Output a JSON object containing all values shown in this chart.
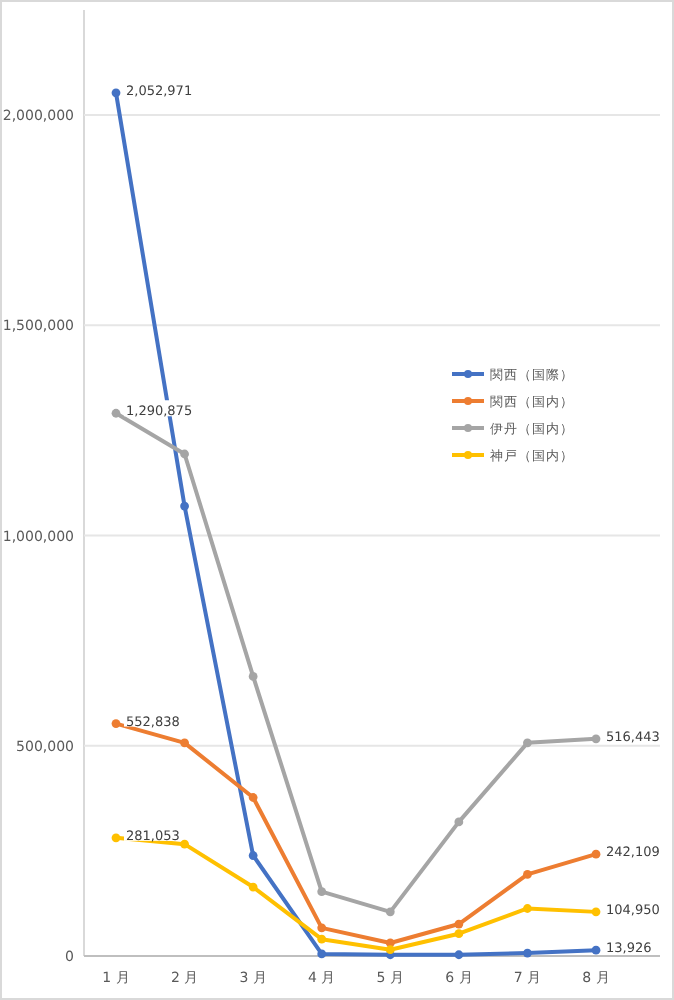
{
  "chart_data": {
    "type": "line",
    "categories": [
      "1 月",
      "2 月",
      "3 月",
      "4 月",
      "5 月",
      "6 月",
      "7 月",
      "8 月"
    ],
    "ylim": [
      0,
      2250000
    ],
    "yticks": [
      {
        "value": 0,
        "label": "0"
      },
      {
        "value": 500000,
        "label": "500,000"
      },
      {
        "value": 1000000,
        "label": "1,000,000"
      },
      {
        "value": 1500000,
        "label": "1,500,000"
      },
      {
        "value": 2000000,
        "label": "2,000,000"
      }
    ],
    "grid": "y",
    "legend": "right",
    "marker": "circle",
    "line_style": "solid",
    "series": [
      {
        "name": "関西（国際）",
        "color": "#4472c4",
        "values": [
          2052971,
          1070000,
          239000,
          5000,
          3000,
          3000,
          7000,
          13926
        ],
        "value_labels": [
          "2,052,971",
          null,
          null,
          null,
          null,
          null,
          null,
          "13,926"
        ]
      },
      {
        "name": "関西（国内）",
        "color": "#ed7d31",
        "values": [
          552838,
          507000,
          377000,
          67000,
          31000,
          76000,
          194000,
          242109
        ],
        "value_labels": [
          "552,838",
          null,
          null,
          null,
          null,
          null,
          null,
          "242,109"
        ]
      },
      {
        "name": "伊丹（国内）",
        "color": "#a5a5a5",
        "values": [
          1290875,
          1194000,
          665000,
          153000,
          105000,
          319000,
          507000,
          516443
        ],
        "value_labels": [
          "1,290,875",
          null,
          null,
          null,
          null,
          null,
          null,
          "516,443"
        ]
      },
      {
        "name": "神戸（国内）",
        "color": "#ffc000",
        "values": [
          281053,
          266000,
          164000,
          40000,
          15000,
          53000,
          113000,
          104950
        ],
        "value_labels": [
          "281,053",
          null,
          null,
          null,
          null,
          null,
          null,
          "104,950"
        ]
      }
    ]
  }
}
